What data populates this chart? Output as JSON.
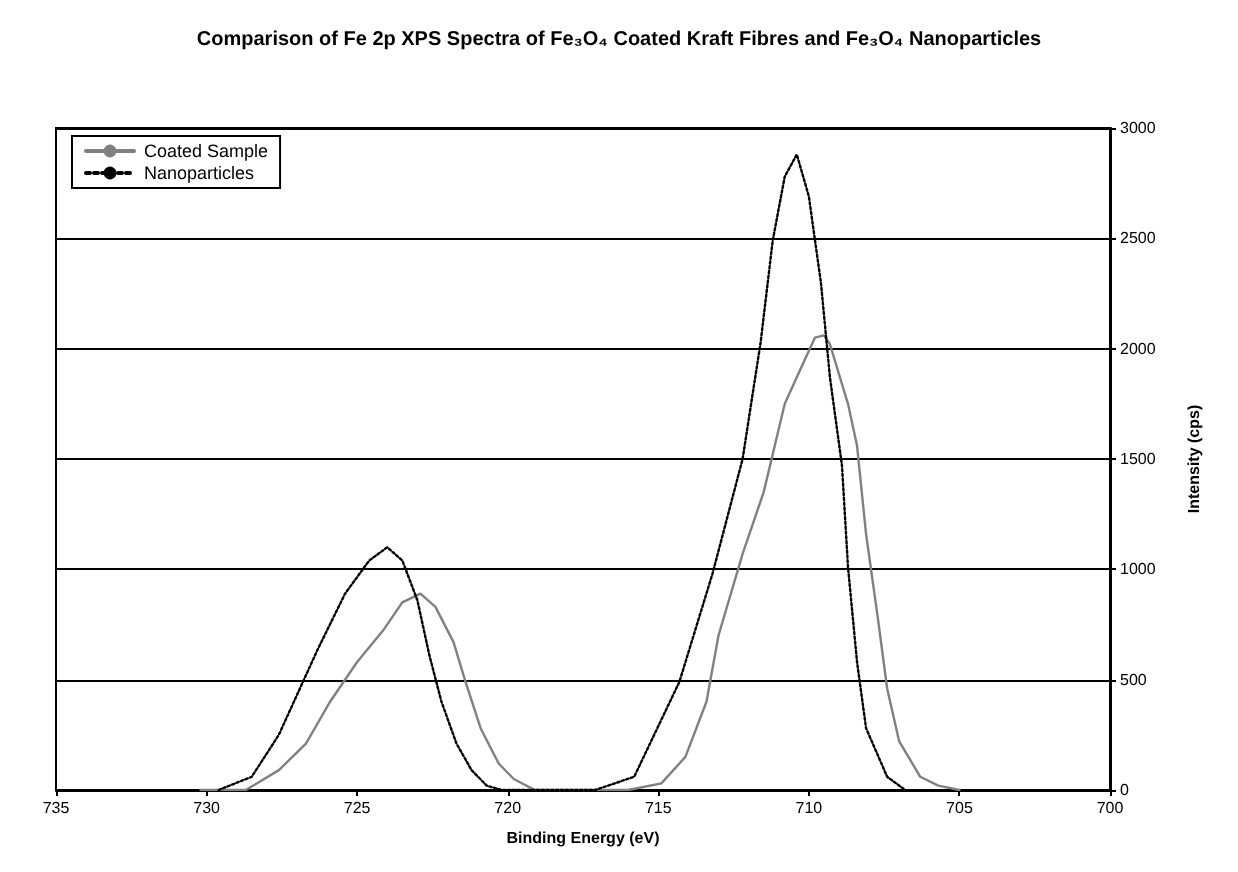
{
  "chart_data": {
    "type": "line",
    "title": "Comparison of Fe 2p XPS Spectra of Fe₃O₄ Coated Kraft Fibres and Fe₃O₄ Nanoparticles",
    "xlabel": "Binding Energy (eV)",
    "ylabel": "Intensity (cps)",
    "xlim": [
      735,
      700
    ],
    "xticks": [
      735,
      730,
      725,
      720,
      715,
      710,
      705,
      700
    ],
    "ylim": [
      0,
      3000
    ],
    "yticks": [
      0,
      500,
      1000,
      1500,
      2000,
      2500,
      3000
    ],
    "grid": "y",
    "legend": "top left",
    "marker": "none",
    "series": [
      {
        "name": "Coated Sample",
        "color": "#808080",
        "line_style": "solid",
        "x": [
          730.2,
          728.7,
          727.6,
          726.7,
          725.9,
          725.0,
          724.1,
          723.5,
          722.9,
          722.4,
          721.8,
          721.4,
          720.9,
          720.3,
          719.8,
          719.1,
          718.0,
          716.0,
          714.9,
          714.1,
          713.4,
          713.0,
          712.2,
          711.5,
          710.8,
          710.2,
          709.8,
          709.5,
          709.3,
          708.7,
          708.4,
          708.1,
          707.7,
          707.4,
          707.0,
          706.3,
          705.7,
          705.0
        ],
        "values": [
          0,
          0,
          90,
          210,
          400,
          580,
          730,
          850,
          890,
          830,
          670,
          490,
          280,
          120,
          50,
          0,
          0,
          0,
          30,
          150,
          400,
          700,
          1070,
          1350,
          1750,
          1930,
          2050,
          2060,
          2020,
          1750,
          1560,
          1160,
          770,
          460,
          220,
          60,
          20,
          0
        ]
      },
      {
        "name": "Nanoparticles",
        "color": "#000000",
        "line_style": "dotted",
        "x": [
          729.6,
          728.5,
          727.6,
          727.0,
          726.3,
          725.4,
          724.6,
          724.0,
          723.5,
          723.0,
          722.6,
          722.2,
          721.7,
          721.2,
          720.7,
          720.2,
          717.1,
          715.8,
          714.3,
          713.2,
          712.2,
          711.6,
          711.2,
          710.8,
          710.4,
          710.0,
          709.6,
          709.3,
          708.9,
          708.7,
          708.4,
          708.1,
          707.4,
          706.8
        ],
        "values": [
          0,
          60,
          250,
          430,
          640,
          890,
          1040,
          1100,
          1040,
          860,
          610,
          400,
          210,
          90,
          20,
          0,
          0,
          60,
          490,
          980,
          1500,
          2030,
          2490,
          2780,
          2880,
          2690,
          2300,
          1870,
          1470,
          1010,
          580,
          280,
          60,
          0
        ]
      }
    ]
  }
}
